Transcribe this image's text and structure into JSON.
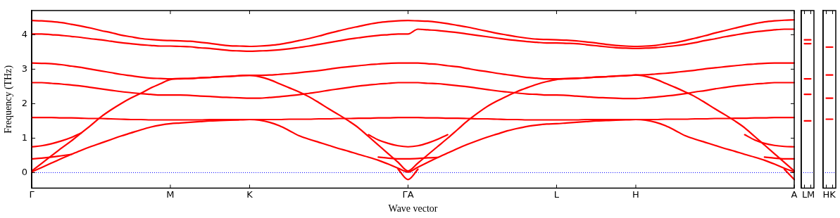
{
  "chart_data": [
    {
      "type": "line",
      "xlabel": "Wave vector",
      "ylabel": "Frequency (THz)",
      "ylim": [
        -0.45,
        4.7
      ],
      "yticks": [
        0,
        1,
        2,
        3,
        4
      ],
      "grid": false,
      "legend": false,
      "categories": [
        "Γ",
        null,
        null,
        null,
        null,
        null,
        null,
        null,
        null,
        null,
        null,
        null,
        null,
        null,
        "M",
        null,
        null,
        null,
        null,
        null,
        null,
        null,
        "K",
        null,
        null,
        null,
        null,
        null,
        null,
        null,
        null,
        null,
        null,
        null,
        null,
        null,
        null,
        null,
        "ΓA",
        null,
        null,
        null,
        null,
        null,
        null,
        null,
        null,
        null,
        null,
        null,
        null,
        null,
        null,
        "L",
        null,
        null,
        null,
        null,
        null,
        null,
        null,
        "H",
        null,
        null,
        null,
        null,
        null,
        null,
        null,
        null,
        null,
        null,
        null,
        null,
        null,
        null,
        null,
        "A"
      ],
      "ref_lines": [
        {
          "axis": "y",
          "value": 0,
          "color": "#0000ff",
          "line_style": "dotted"
        }
      ],
      "series": [
        {
          "color": "#ff0000",
          "values": [
            4.41,
            4.4,
            4.38,
            4.35,
            4.3,
            4.25,
            4.19,
            4.12,
            4.06,
            3.99,
            3.94,
            3.89,
            3.86,
            3.84,
            3.83,
            3.82,
            3.81,
            3.78,
            3.75,
            3.71,
            3.68,
            3.67,
            3.66,
            3.67,
            3.69,
            3.72,
            3.77,
            3.83,
            3.89,
            3.96,
            4.04,
            4.11,
            4.18,
            4.24,
            4.3,
            4.35,
            4.38,
            4.4,
            4.41,
            4.4,
            4.39,
            4.36,
            4.32,
            4.27,
            4.22,
            4.16,
            4.1,
            4.04,
            3.99,
            3.94,
            3.9,
            3.87,
            3.86,
            3.85,
            3.84,
            3.82,
            3.79,
            3.76,
            3.72,
            3.69,
            3.67,
            3.66,
            3.67,
            3.69,
            3.73,
            3.77,
            3.83,
            3.9,
            3.97,
            4.05,
            4.12,
            4.19,
            4.26,
            4.32,
            4.37,
            4.4,
            4.42,
            4.43
          ]
        },
        {
          "color": "#ff0000",
          "values": [
            4.02,
            4.02,
            4.0,
            3.98,
            3.95,
            3.92,
            3.88,
            3.85,
            3.81,
            3.77,
            3.74,
            3.71,
            3.69,
            3.67,
            3.67,
            3.66,
            3.65,
            3.62,
            3.6,
            3.57,
            3.54,
            3.53,
            3.52,
            3.53,
            3.54,
            3.56,
            3.59,
            3.63,
            3.67,
            3.72,
            3.77,
            3.82,
            3.87,
            3.91,
            3.95,
            3.98,
            4.0,
            4.02,
            4.02,
            4.16,
            4.14,
            4.12,
            4.09,
            4.06,
            4.02,
            3.98,
            3.94,
            3.9,
            3.86,
            3.83,
            3.8,
            3.78,
            3.76,
            3.76,
            3.75,
            3.74,
            3.71,
            3.68,
            3.65,
            3.62,
            3.61,
            3.6,
            3.61,
            3.62,
            3.65,
            3.68,
            3.72,
            3.77,
            3.83,
            3.88,
            3.94,
            3.99,
            4.04,
            4.08,
            4.11,
            4.14,
            4.16,
            4.16
          ]
        },
        {
          "color": "#ff0000",
          "values": [
            3.18,
            3.17,
            3.16,
            3.13,
            3.09,
            3.05,
            3.0,
            2.95,
            2.9,
            2.85,
            2.81,
            2.77,
            2.74,
            2.73,
            2.72,
            2.73,
            2.73,
            2.75,
            2.76,
            2.78,
            2.79,
            2.81,
            2.82,
            2.82,
            2.83,
            2.85,
            2.87,
            2.9,
            2.93,
            2.96,
            3.0,
            3.04,
            3.07,
            3.1,
            3.13,
            3.15,
            3.17,
            3.18,
            3.18,
            3.18,
            3.16,
            3.14,
            3.1,
            3.07,
            3.02,
            2.97,
            2.93,
            2.88,
            2.84,
            2.8,
            2.76,
            2.74,
            2.72,
            2.72,
            2.73,
            2.74,
            2.75,
            2.77,
            2.78,
            2.8,
            2.81,
            2.83,
            2.84,
            2.86,
            2.88,
            2.91,
            2.94,
            2.97,
            3.01,
            3.04,
            3.07,
            3.1,
            3.13,
            3.15,
            3.17,
            3.18,
            3.18,
            3.18
          ]
        },
        {
          "color": "#ff0000",
          "values": [
            2.61,
            2.61,
            2.59,
            2.57,
            2.54,
            2.51,
            2.47,
            2.43,
            2.39,
            2.35,
            2.32,
            2.29,
            2.27,
            2.25,
            2.25,
            2.25,
            2.24,
            2.22,
            2.21,
            2.19,
            2.18,
            2.17,
            2.16,
            2.16,
            2.18,
            2.2,
            2.23,
            2.26,
            2.3,
            2.34,
            2.39,
            2.43,
            2.47,
            2.51,
            2.54,
            2.57,
            2.59,
            2.61,
            2.61,
            2.61,
            2.59,
            2.58,
            2.55,
            2.52,
            2.49,
            2.45,
            2.41,
            2.37,
            2.34,
            2.31,
            2.28,
            2.27,
            2.25,
            2.25,
            2.24,
            2.22,
            2.2,
            2.18,
            2.17,
            2.16,
            2.15,
            2.15,
            2.17,
            2.19,
            2.22,
            2.25,
            2.29,
            2.34,
            2.38,
            2.43,
            2.47,
            2.51,
            2.54,
            2.57,
            2.59,
            2.61,
            2.61,
            2.61
          ]
        },
        {
          "color": "#ff0000",
          "values": [
            1.6,
            1.6,
            1.6,
            1.59,
            1.59,
            1.58,
            1.57,
            1.57,
            1.56,
            1.55,
            1.54,
            1.54,
            1.53,
            1.53,
            1.53,
            1.53,
            1.53,
            1.53,
            1.54,
            1.54,
            1.54,
            1.54,
            1.54,
            1.54,
            1.54,
            1.54,
            1.55,
            1.55,
            1.55,
            1.56,
            1.56,
            1.57,
            1.57,
            1.58,
            1.58,
            1.59,
            1.59,
            1.6,
            1.6,
            1.6,
            1.59,
            1.59,
            1.58,
            1.58,
            1.57,
            1.56,
            1.56,
            1.55,
            1.54,
            1.54,
            1.53,
            1.53,
            1.53,
            1.53,
            1.53,
            1.53,
            1.54,
            1.54,
            1.54,
            1.54,
            1.54,
            1.54,
            1.54,
            1.54,
            1.55,
            1.55,
            1.55,
            1.56,
            1.56,
            1.57,
            1.57,
            1.58,
            1.58,
            1.59,
            1.59,
            1.6,
            1.6,
            1.6
          ]
        },
        {
          "color": "#ff0000",
          "values": [
            0.05,
            0.27,
            0.49,
            0.71,
            0.92,
            1.15,
            1.38,
            1.62,
            1.82,
            2.0,
            2.16,
            2.3,
            2.45,
            2.58,
            2.7,
            2.72,
            2.73,
            2.75,
            2.76,
            2.78,
            2.79,
            2.81,
            2.82,
            2.78,
            2.7,
            2.58,
            2.46,
            2.34,
            2.2,
            2.03,
            1.85,
            1.68,
            1.5,
            1.3,
            1.05,
            0.8,
            0.55,
            0.3,
            0.05,
            0.28,
            0.52,
            0.76,
            1.0,
            1.25,
            1.5,
            1.72,
            1.92,
            2.08,
            2.22,
            2.35,
            2.46,
            2.56,
            2.64,
            2.7,
            2.72,
            2.73,
            2.75,
            2.77,
            2.78,
            2.8,
            2.81,
            2.83,
            2.79,
            2.71,
            2.59,
            2.47,
            2.34,
            2.2,
            2.03,
            1.85,
            1.68,
            1.5,
            1.3,
            1.05,
            0.8,
            0.55,
            0.3,
            0.05
          ]
        },
        {
          "color": "#ff0000",
          "values": [
            0.02,
            0.15,
            0.28,
            0.41,
            0.53,
            0.65,
            0.76,
            0.86,
            0.96,
            1.06,
            1.15,
            1.24,
            1.32,
            1.38,
            1.42,
            1.44,
            1.46,
            1.48,
            1.5,
            1.51,
            1.52,
            1.53,
            1.54,
            1.52,
            1.46,
            1.36,
            1.22,
            1.07,
            0.97,
            0.88,
            0.79,
            0.7,
            0.62,
            0.53,
            0.45,
            0.36,
            0.25,
            0.13,
            0.02,
            0.16,
            0.3,
            0.44,
            0.57,
            0.7,
            0.82,
            0.93,
            1.03,
            1.12,
            1.21,
            1.28,
            1.34,
            1.38,
            1.41,
            1.42,
            1.44,
            1.46,
            1.48,
            1.5,
            1.51,
            1.52,
            1.53,
            1.54,
            1.52,
            1.46,
            1.36,
            1.22,
            1.07,
            0.97,
            0.88,
            0.79,
            0.7,
            0.62,
            0.53,
            0.45,
            0.36,
            0.25,
            0.13,
            0.02
          ]
        },
        {
          "color": "#ff0000",
          "values": [
            0.75,
            0.78,
            0.84,
            0.92,
            1.02,
            1.15,
            null,
            null,
            null,
            null,
            null,
            null,
            null,
            null,
            null,
            null,
            null,
            null,
            null,
            null,
            null,
            null,
            null,
            null,
            null,
            null,
            null,
            null,
            null,
            null,
            null,
            null,
            null,
            null,
            1.1,
            0.95,
            0.85,
            0.78,
            0.75,
            0.78,
            0.86,
            0.97,
            1.1,
            null,
            null,
            null,
            null,
            null,
            null,
            null,
            null,
            null,
            null,
            null,
            null,
            null,
            null,
            null,
            null,
            null,
            null,
            null,
            null,
            null,
            null,
            null,
            null,
            null,
            null,
            null,
            null,
            null,
            1.1,
            0.95,
            0.85,
            0.79,
            0.76,
            0.75
          ]
        },
        {
          "color": "#ff0000",
          "values": [
            0.4,
            0.42,
            0.45,
            0.49,
            0.53,
            null,
            null,
            null,
            null,
            null,
            null,
            null,
            null,
            null,
            null,
            null,
            null,
            null,
            null,
            null,
            null,
            null,
            null,
            null,
            null,
            null,
            null,
            null,
            null,
            null,
            null,
            null,
            null,
            null,
            null,
            0.45,
            0.42,
            0.4,
            0.4,
            0.41,
            0.43,
            0.44,
            null,
            null,
            null,
            null,
            null,
            null,
            null,
            null,
            null,
            null,
            null,
            null,
            null,
            null,
            null,
            null,
            null,
            null,
            null,
            null,
            null,
            null,
            null,
            null,
            null,
            null,
            null,
            null,
            null,
            null,
            null,
            null,
            0.45,
            0.42,
            0.4,
            0.4
          ]
        },
        {
          "color": "#ff0000",
          "values": [
            null,
            null,
            null,
            null,
            null,
            null,
            null,
            null,
            null,
            null,
            null,
            null,
            null,
            null,
            null,
            null,
            null,
            null,
            null,
            null,
            null,
            null,
            null,
            null,
            null,
            null,
            null,
            null,
            null,
            null,
            null,
            null,
            null,
            null,
            null,
            null,
            null,
            0.1,
            -0.2,
            0.1,
            null,
            null,
            null,
            null,
            null,
            null,
            null,
            null,
            null,
            null,
            null,
            null,
            null,
            null,
            null,
            null,
            null,
            null,
            null,
            null,
            null,
            null,
            null,
            null,
            null,
            null,
            null,
            null,
            null,
            null,
            null,
            null,
            null,
            null,
            null,
            null,
            0.1,
            -0.2
          ]
        }
      ]
    },
    {
      "type": "line",
      "ylim": [
        -0.45,
        4.7
      ],
      "categories": [
        "L",
        "M"
      ],
      "yticks": [
        0,
        1,
        2,
        3,
        4
      ],
      "tick_labels": "x",
      "grid": false,
      "legend": false,
      "ref_lines": [
        {
          "axis": "y",
          "value": 0,
          "color": "#0000ff",
          "line_style": "dotted"
        }
      ],
      "series": [
        {
          "color": "#ff0000",
          "values": [
            3.85,
            3.85
          ]
        },
        {
          "color": "#ff0000",
          "values": [
            3.74,
            3.74
          ]
        },
        {
          "color": "#ff0000",
          "values": [
            2.72,
            2.72
          ]
        },
        {
          "color": "#ff0000",
          "values": [
            2.27,
            2.27
          ]
        },
        {
          "color": "#ff0000",
          "values": [
            1.5,
            1.5
          ]
        }
      ]
    },
    {
      "type": "line",
      "ylim": [
        -0.45,
        4.7
      ],
      "categories": [
        "H",
        "K"
      ],
      "yticks": [
        0,
        1,
        2,
        3,
        4
      ],
      "tick_labels": "x",
      "grid": false,
      "legend": false,
      "ref_lines": [
        {
          "axis": "y",
          "value": 0,
          "color": "#0000ff",
          "line_style": "dotted"
        }
      ],
      "series": [
        {
          "color": "#ff0000",
          "values": [
            3.64,
            3.64
          ]
        },
        {
          "color": "#ff0000",
          "values": [
            2.83,
            2.83
          ]
        },
        {
          "color": "#ff0000",
          "values": [
            2.16,
            2.16
          ]
        },
        {
          "color": "#ff0000",
          "values": [
            1.55,
            1.55
          ]
        }
      ]
    }
  ]
}
